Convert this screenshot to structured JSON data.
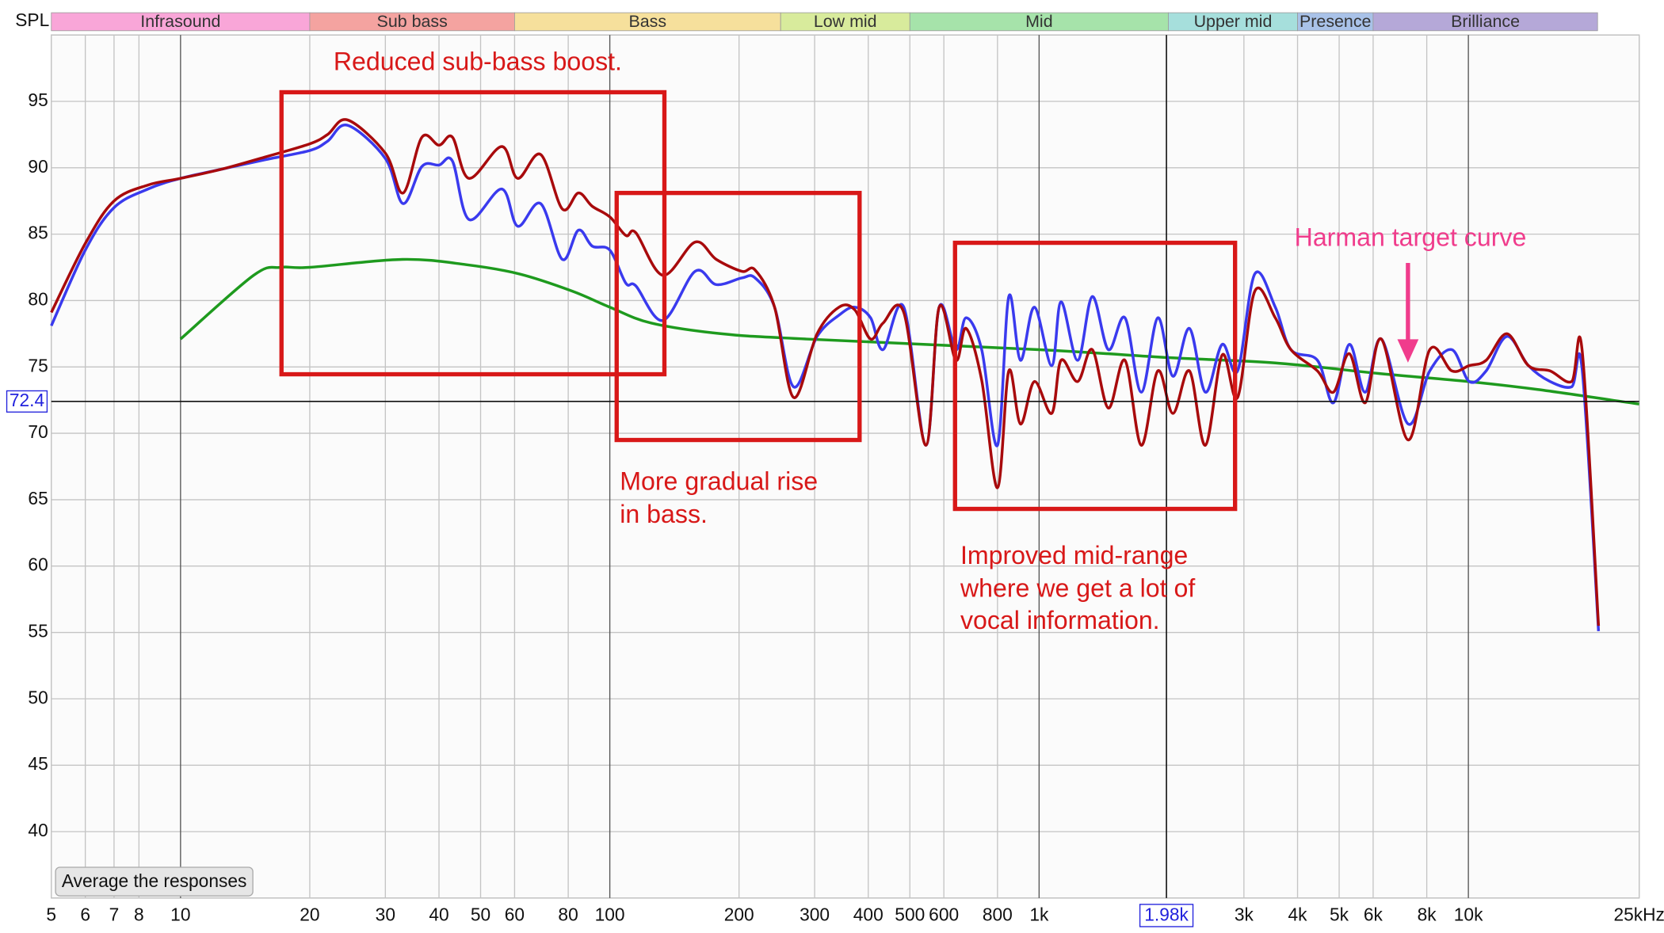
{
  "chart_data": {
    "type": "line",
    "y_label": "SPL",
    "log_x": true,
    "grid": true,
    "xlim": [
      5,
      25000
    ],
    "ylim": [
      35,
      100
    ],
    "xticks": [
      5,
      6,
      7,
      8,
      10,
      20,
      30,
      40,
      50,
      60,
      80,
      100,
      200,
      300,
      400,
      500,
      600,
      800,
      {
        "value": 1000,
        "label": "1k"
      },
      {
        "value": 3000,
        "label": "3k"
      },
      {
        "value": 4000,
        "label": "4k"
      },
      {
        "value": 5000,
        "label": "5k"
      },
      {
        "value": 6000,
        "label": "6k"
      },
      {
        "value": 8000,
        "label": "8k"
      },
      {
        "value": 10000,
        "label": "10k"
      },
      {
        "value": 25000,
        "label": "25kHz"
      }
    ],
    "yticks": [
      40,
      45,
      50,
      55,
      60,
      65,
      70,
      75,
      80,
      85,
      90,
      95
    ],
    "bands": [
      {
        "label": "Infrasound",
        "from": 5,
        "to": 20,
        "color": "#f9a6d8"
      },
      {
        "label": "Sub bass",
        "from": 20,
        "to": 60,
        "color": "#f4a3a0"
      },
      {
        "label": "Bass",
        "from": 60,
        "to": 250,
        "color": "#f6e09c"
      },
      {
        "label": "Low mid",
        "from": 250,
        "to": 500,
        "color": "#d8eb9c"
      },
      {
        "label": "Mid",
        "from": 500,
        "to": 2000,
        "color": "#a6e3aa"
      },
      {
        "label": "Upper mid",
        "from": 2000,
        "to": 4000,
        "color": "#a6dfdc"
      },
      {
        "label": "Presence",
        "from": 4000,
        "to": 6000,
        "color": "#a9c2e8"
      },
      {
        "label": "Brilliance",
        "from": 6000,
        "to": 20000,
        "color": "#b5a8d8"
      }
    ],
    "cursor": {
      "x": {
        "value": 1980,
        "label": "1.98k"
      },
      "y": {
        "value": 72.4,
        "label": "72.4"
      }
    },
    "series": [
      {
        "color": "#a80a0c",
        "x": [
          5,
          6,
          7,
          8.4,
          10,
          12.5,
          15.7,
          20,
          22,
          24.5,
          30,
          33,
          36.5,
          40,
          43,
          47,
          56,
          61,
          69,
          77.5,
          84.5,
          91,
          100,
          109,
          115,
          133,
          158,
          177,
          203,
          218,
          242,
          268,
          304,
          342,
          372,
          405,
          433,
          484,
          545,
          585,
          640,
          676,
          735,
          800,
          850,
          905,
          975,
          1070,
          1125,
          1230,
          1330,
          1450,
          1585,
          1730,
          1890,
          2050,
          2240,
          2440,
          2670,
          2900,
          3180,
          3550,
          3860,
          4450,
          4850,
          5280,
          5750,
          6270,
          7240,
          8130,
          9150,
          10050,
          11000,
          12300,
          13800,
          15500,
          17400,
          18400,
          20100
        ],
        "values": [
          79.1,
          84.3,
          87.5,
          88.7,
          89.2,
          89.9,
          90.8,
          91.8,
          92.5,
          93.6,
          91.1,
          88.1,
          92.3,
          91.7,
          92.3,
          89.2,
          91.6,
          89.2,
          91.0,
          86.9,
          88.1,
          87.1,
          86.3,
          84.9,
          85.1,
          81.9,
          84.4,
          83.1,
          82.2,
          82.3,
          79.5,
          72.7,
          77.5,
          79.5,
          79.3,
          77.1,
          78.3,
          79.1,
          69.1,
          79.5,
          75.5,
          77.9,
          74.0,
          65.9,
          74.7,
          70.7,
          73.9,
          71.5,
          75.5,
          73.9,
          76.3,
          71.9,
          75.5,
          69.1,
          74.7,
          71.5,
          74.7,
          69.1,
          75.9,
          72.7,
          80.7,
          78.7,
          76.3,
          74.7,
          73.1,
          76.0,
          72.3,
          77.1,
          69.5,
          76.3,
          74.7,
          75.1,
          75.5,
          77.5,
          75.1,
          74.7,
          73.9,
          76.3,
          55.5
        ]
      },
      {
        "color": "#3a3aee",
        "x": [
          5,
          6,
          7,
          8.4,
          10,
          12.5,
          15.7,
          20,
          22,
          24.5,
          30,
          33,
          36.5,
          40,
          43,
          47,
          56,
          61,
          69,
          77.5,
          84.5,
          91,
          100,
          109,
          115,
          133,
          158,
          177,
          203,
          218,
          242,
          268,
          304,
          342,
          372,
          405,
          433,
          484,
          545,
          585,
          640,
          676,
          735,
          800,
          850,
          905,
          975,
          1070,
          1125,
          1230,
          1330,
          1450,
          1585,
          1730,
          1890,
          2050,
          2240,
          2440,
          2670,
          2900,
          3180,
          3550,
          3860,
          4450,
          4850,
          5280,
          5750,
          6270,
          7240,
          8130,
          9150,
          10050,
          11000,
          12300,
          13800,
          15500,
          17400,
          18400,
          20100
        ],
        "values": [
          78.1,
          83.8,
          87.0,
          88.4,
          89.2,
          89.9,
          90.6,
          91.3,
          92.0,
          93.2,
          90.7,
          87.3,
          90.1,
          90.2,
          90.5,
          86.1,
          88.4,
          85.6,
          87.3,
          83.1,
          85.3,
          84.1,
          83.8,
          81.3,
          81.1,
          78.5,
          82.2,
          81.2,
          81.7,
          81.7,
          79.5,
          73.5,
          77.3,
          78.9,
          79.5,
          78.7,
          76.3,
          79.5,
          69.1,
          79.5,
          76.3,
          78.7,
          76.3,
          69.1,
          80.3,
          75.5,
          79.5,
          75.1,
          79.9,
          75.5,
          80.3,
          76.3,
          78.7,
          73.1,
          78.7,
          74.3,
          77.9,
          73.1,
          76.7,
          74.7,
          82.0,
          79.5,
          76.3,
          75.5,
          72.3,
          76.7,
          73.1,
          77.1,
          70.7,
          74.7,
          76.3,
          73.9,
          74.7,
          77.3,
          75.1,
          73.9,
          73.5,
          74.9,
          55.1
        ]
      },
      {
        "color": "#1e9a1e",
        "x": [
          10,
          14.8,
          17.1,
          20,
          32.9,
          46.3,
          61.6,
          81.9,
          100,
          125,
          182,
          287,
          1000,
          2000,
          3550,
          6200,
          10000,
          14500,
          25000
        ],
        "values": [
          77.1,
          81.9,
          82.5,
          82.5,
          83.1,
          82.7,
          82.0,
          80.7,
          79.5,
          78.3,
          77.5,
          77.1,
          76.3,
          75.7,
          75.3,
          74.5,
          73.9,
          73.3,
          72.2
        ]
      }
    ],
    "annotations": {
      "sub_bass": [
        "Reduced sub-bass boost."
      ],
      "bass": [
        "More gradual rise",
        "in bass."
      ],
      "mid": [
        "Improved mid-range",
        "where we get a lot of",
        "vocal information."
      ],
      "target": [
        "Harman target curve"
      ]
    },
    "button": "Average the responses"
  }
}
